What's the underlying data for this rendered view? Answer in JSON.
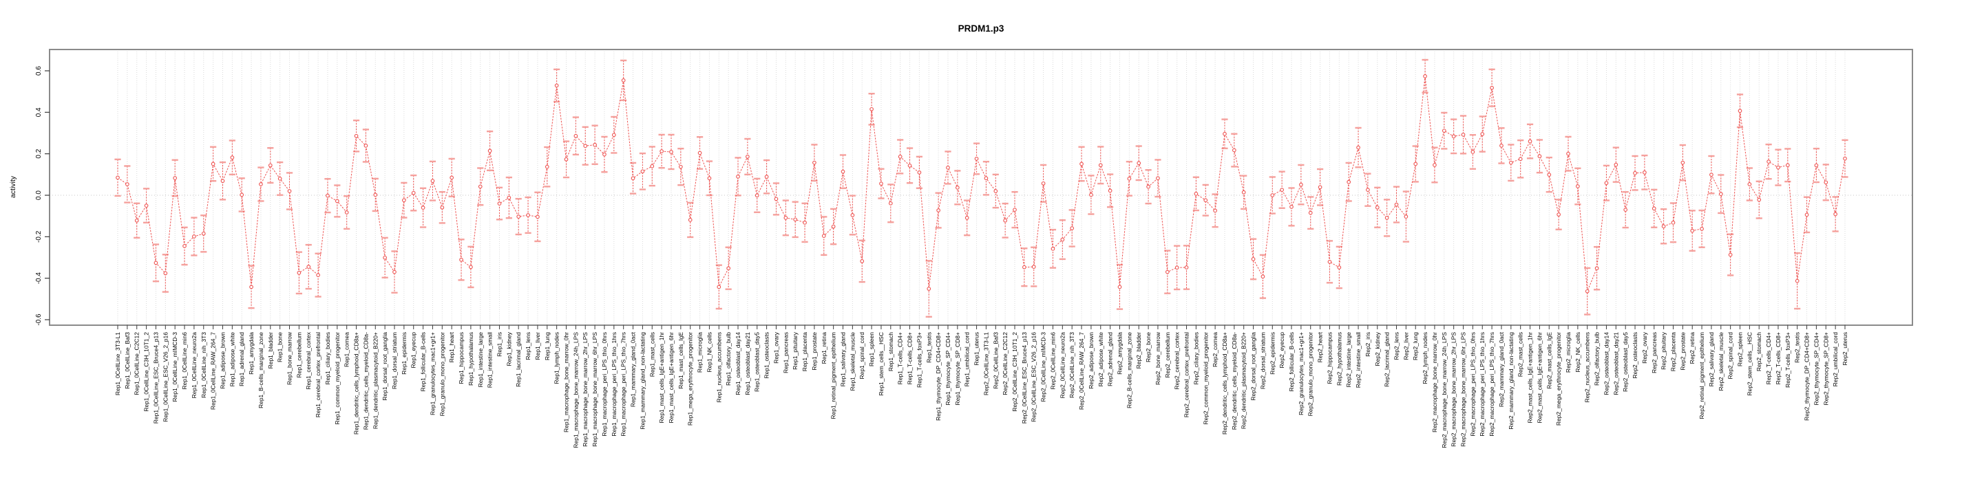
{
  "chart_data": {
    "type": "line",
    "title": "PRDM1.p3",
    "xlabel": "",
    "ylabel": "activity",
    "ylim": [
      -0.63,
      0.7
    ],
    "yticks": [
      -0.6,
      -0.4,
      -0.2,
      0.0,
      0.2,
      0.4,
      0.6
    ],
    "grid": "dotted vertical gridline at every category; dotted horizontal line at y=0",
    "legend": "none",
    "marker": "open-circle",
    "error_bars": "dashed vertical line with solid caps, +/- error per point",
    "colors": {
      "series": "#ee5250",
      "error_caps": "#f5a09c",
      "grid": "#d9d9d9",
      "zero_line": "#c4c4c4",
      "box": "#8a8a8a",
      "tick": "#3a3a3a",
      "text": "#000000",
      "background": "#ffffff"
    },
    "categories": [
      "Rep1_0CellLine_3T3-L1",
      "Rep1_0CellLine_Baf3",
      "Rep1_0CellLine_C2C12",
      "Rep1_0CellLine_C3H_10T1_2",
      "Rep1_0CellLine_ESC_Bruce4_p13",
      "Rep1_0CellLine_ESC_V26_2_p16",
      "Rep1_0CellLine_mIMCD-3",
      "Rep1_0CellLine_min6",
      "Rep1_0CellLine_neuro2a",
      "Rep1_0CellLine_nih_3T3",
      "Rep1_0CellLine_RAW_264_7",
      "Rep1_adipose_brown",
      "Rep1_adipose_white",
      "Rep1_adrenal_gland",
      "Rep1_amygdala",
      "Rep1_B-cells_marginal_zone",
      "Rep1_bladder",
      "Rep1_bone",
      "Rep1_bone_marrow",
      "Rep1_cerebellum",
      "Rep1_cerebral_cortex",
      "Rep1_cerebral_cortex_prefrontal",
      "Rep1_ciliary_bodies",
      "Rep1_common_myeloid_progenitor",
      "Rep1_cornea",
      "Rep1_dendritic_cells_lymphoid_CD8a+",
      "Rep1_dendritic_cells_myeloid_CD8a-",
      "Rep1_dendritic_plasmacytoid_B220+",
      "Rep1_dorsal_root_ganglia",
      "Rep1_dorsal_striatum",
      "Rep1_epidermis",
      "Rep1_eyecup",
      "Rep1_follicular_B-cells",
      "Rep1_granulocytes_mac1+gr1+",
      "Rep1_granulo_mono_progenitor",
      "Rep1_heart",
      "Rep1_hippocampus",
      "Rep1_hypothalamus",
      "Rep1_intestine_large",
      "Rep1_intestine_small",
      "Rep1_iris",
      "Rep1_kidney",
      "Rep1_lacrimal_gland",
      "Rep1_lens",
      "Rep1_liver",
      "Rep1_lung",
      "Rep1_lymph_nodes",
      "Rep1_macrophage_bone_marrow_0hr",
      "Rep1_macrophage_bone_marrow_24h_LPS",
      "Rep1_macrophage_bone_marrow_2hr_LPS",
      "Rep1_macrophage_bone_marrow_6hr_LPS",
      "Rep1_macrophage_peri_LPS_thio_0hrs",
      "Rep1_macrophage_peri_LPS_thio_1hrs",
      "Rep1_macrophage_peri_LPS_thio_7hrs",
      "Rep1_mammary_gland_0act",
      "Rep1_mammary_gland_non-lactating",
      "Rep1_mast_cells",
      "Rep1_mast_cells_IgE+antigen_1hr",
      "Rep1_mast_cells_IgE+antigen_6hr",
      "Rep1_mast_cells_IgE",
      "Rep1_mega_erythrocyte_progenitor",
      "Rep1_microglia",
      "Rep1_NK_cells",
      "Rep1_nucleus_accumbens",
      "Rep1_olfactory_bulb",
      "Rep1_osteoblast_day14",
      "Rep1_osteoblast_day21",
      "Rep1_osteoblast_day5",
      "Rep1_osteoclasts",
      "Rep1_ovary",
      "Rep1_pancreas",
      "Rep1_pituitary",
      "Rep1_placenta",
      "Rep1_prostate",
      "Rep1_retina",
      "Rep1_retinal_pigment_epithelium",
      "Rep1_salivary_gland",
      "Rep1_skeletal_muscle",
      "Rep1_spinal_cord",
      "Rep1_spleen",
      "Rep1_stem_cells__HSC",
      "Rep1_stomach",
      "Rep1_T-cells_CD4+",
      "Rep1_T-cells_CD8+",
      "Rep1_T-cells_foxP3+",
      "Rep1_testis",
      "Rep1_thymocyte_DP_CD4+CD8+",
      "Rep1_thymocyte_SP_CD4+",
      "Rep1_thymocyte_SP_CD8+",
      "Rep1_umbilical_cord",
      "Rep1_uterus",
      "Rep2_0CellLine_3T3-L1",
      "Rep2_0CellLine_Baf3",
      "Rep2_0CellLine_C2C12",
      "Rep2_0CellLine_C3H_10T1_2",
      "Rep2_0CellLine_ESC_Bruce4_p13",
      "Rep2_0CellLine_ESC_V26_2_p16",
      "Rep2_0CellLine_mIMCD-3",
      "Rep2_0CellLine_min6",
      "Rep2_0CellLine_neuro2a",
      "Rep2_0CellLine_nih_3T3",
      "Rep2_0CellLine_RAW_264_7",
      "Rep2_adipose_brown",
      "Rep2_adipose_white",
      "Rep2_adrenal_gland",
      "Rep2_amygdala",
      "Rep2_B-cells_marginal_zone",
      "Rep2_bladder",
      "Rep2_bone",
      "Rep2_bone_marrow",
      "Rep2_cerebellum",
      "Rep2_cerebral_cortex",
      "Rep2_cerebral_cortex_prefrontal",
      "Rep2_ciliary_bodies",
      "Rep2_common_myeloid_progenitor",
      "Rep2_cornea",
      "Rep2_dendritic_cells_lymphoid_CD8a+",
      "Rep2_dendritic_cells_myeloid_CD8a-",
      "Rep2_dendritic_plasmacytoid_B220+",
      "Rep2_dorsal_root_ganglia",
      "Rep2_dorsal_striatum",
      "Rep2_epidermis",
      "Rep2_eyecup",
      "Rep2_follicular_B-cells",
      "Rep2_granulocytes_mac1+gr1+",
      "Rep2_granulo_mono_progenitor",
      "Rep2_heart",
      "Rep2_hippocampus",
      "Rep2_hypothalamus",
      "Rep2_intestine_large",
      "Rep2_intestine_small",
      "Rep2_iris",
      "Rep2_kidney",
      "Rep2_lacrimal_gland",
      "Rep2_lens",
      "Rep2_liver",
      "Rep2_lung",
      "Rep2_lymph_nodes",
      "Rep2_macrophage_bone_marrow_0hr",
      "Rep2_macrophage_bone_marrow_24h_LPS",
      "Rep2_macrophage_bone_marrow_2hr_LPS",
      "Rep2_macrophage_bone_marrow_6hr_LPS",
      "Rep2_macrophage_peri_LPS_thio_0hrs",
      "Rep2_macrophage_peri_LPS_thio_1hrs",
      "Rep2_macrophage_peri_LPS_thio_7hrs",
      "Rep2_mammary_gland_0act",
      "Rep2_mammary_gland_non-lactating",
      "Rep2_mast_cells",
      "Rep2_mast_cells_IgE+antigen_1hr",
      "Rep2_mast_cells_IgE+antigen_6hr",
      "Rep2_mast_cells_IgE",
      "Rep2_mega_erythrocyte_progenitor",
      "Rep2_microglia",
      "Rep2_NK_cells",
      "Rep2_nucleus_accumbens",
      "Rep2_olfactory_bulb",
      "Rep2_osteoblast_day14",
      "Rep2_osteoblast_day21",
      "Rep2_osteoblast_day5",
      "Rep2_osteoclasts",
      "Rep2_ovary",
      "Rep2_pancreas",
      "Rep2_pituitary",
      "Rep2_placenta",
      "Rep2_prostate",
      "Rep2_retina",
      "Rep2_retinal_pigment_epithelium",
      "Rep2_salivary_gland",
      "Rep2_skeletal_muscle",
      "Rep2_spinal_cord",
      "Rep2_spleen",
      "Rep2_stem_cells__HSC",
      "Rep2_stomach",
      "Rep2_T-cells_CD4+",
      "Rep2_T-cells_CD8+",
      "Rep2_T-cells_foxP3+",
      "Rep2_testis",
      "Rep2_thymocyte_DP_CD4+CD8+",
      "Rep2_thymocyte_SP_CD4+",
      "Rep2_thymocyte_SP_CD8+",
      "Rep2_umbilical_cord",
      "Rep2_uterus"
    ],
    "values": [
      0.085,
      0.053,
      -0.122,
      -0.05,
      -0.326,
      -0.376,
      0.083,
      -0.245,
      -0.199,
      -0.185,
      0.151,
      0.069,
      0.182,
      0.002,
      -0.442,
      0.053,
      0.144,
      0.08,
      0.02,
      -0.374,
      -0.345,
      -0.385,
      -0.002,
      -0.028,
      -0.083,
      0.286,
      0.239,
      0.002,
      -0.301,
      -0.37,
      -0.024,
      0.011,
      -0.06,
      0.069,
      -0.059,
      0.085,
      -0.311,
      -0.346,
      0.042,
      0.214,
      -0.04,
      -0.012,
      -0.103,
      -0.096,
      -0.104,
      0.137,
      0.529,
      0.173,
      0.286,
      0.238,
      0.243,
      0.197,
      0.291,
      0.554,
      0.082,
      0.115,
      0.14,
      0.212,
      0.209,
      0.137,
      -0.119,
      0.204,
      0.082,
      -0.442,
      -0.352,
      0.09,
      0.186,
      -0.001,
      0.089,
      -0.018,
      -0.109,
      -0.117,
      -0.132,
      0.157,
      -0.196,
      -0.151,
      0.114,
      -0.096,
      -0.318,
      0.415,
      0.056,
      -0.039,
      0.186,
      0.143,
      0.11,
      -0.451,
      -0.073,
      0.133,
      0.037,
      -0.109,
      0.176,
      0.082,
      0.02,
      -0.122,
      -0.07,
      -0.347,
      -0.345,
      0.057,
      -0.258,
      -0.214,
      -0.159,
      0.151,
      0.002,
      0.145,
      0.022,
      -0.442,
      0.08,
      0.155,
      0.041,
      0.082,
      -0.37,
      -0.349,
      -0.348,
      0.007,
      -0.024,
      -0.074,
      0.296,
      0.217,
      0.014,
      -0.308,
      -0.392,
      0.0,
      0.026,
      -0.056,
      0.051,
      -0.085,
      0.039,
      -0.321,
      -0.348,
      0.064,
      0.23,
      0.026,
      -0.059,
      -0.109,
      -0.045,
      -0.103,
      0.151,
      0.574,
      0.146,
      0.311,
      0.284,
      0.292,
      0.209,
      0.295,
      0.518,
      0.239,
      0.157,
      0.175,
      0.26,
      0.188,
      0.099,
      -0.093,
      0.2,
      0.043,
      -0.463,
      -0.352,
      0.059,
      0.147,
      -0.07,
      0.107,
      0.11,
      -0.064,
      -0.15,
      -0.132,
      0.157,
      -0.171,
      -0.162,
      0.099,
      0.006,
      -0.287,
      0.407,
      0.053,
      -0.022,
      0.162,
      0.134,
      0.145,
      -0.413,
      -0.094,
      0.144,
      0.062,
      -0.091,
      0.177
    ],
    "errors": [
      0.088,
      0.088,
      0.083,
      0.082,
      0.089,
      0.09,
      0.087,
      0.09,
      0.091,
      0.088,
      0.082,
      0.09,
      0.082,
      0.08,
      0.102,
      0.081,
      0.084,
      0.079,
      0.088,
      0.1,
      0.106,
      0.104,
      0.081,
      0.076,
      0.079,
      0.075,
      0.078,
      0.078,
      0.096,
      0.1,
      0.084,
      0.085,
      0.094,
      0.094,
      0.075,
      0.091,
      0.098,
      0.098,
      0.089,
      0.094,
      0.077,
      0.098,
      0.086,
      0.086,
      0.118,
      0.095,
      0.078,
      0.087,
      0.09,
      0.091,
      0.093,
      0.085,
      0.087,
      0.096,
      0.074,
      0.087,
      0.094,
      0.08,
      0.083,
      0.088,
      0.083,
      0.077,
      0.082,
      0.105,
      0.101,
      0.091,
      0.086,
      0.081,
      0.08,
      0.076,
      0.084,
      0.085,
      0.093,
      0.087,
      0.092,
      0.085,
      0.08,
      0.094,
      0.1,
      0.075,
      0.071,
      0.091,
      0.081,
      0.084,
      0.076,
      0.135,
      0.084,
      0.078,
      0.081,
      0.084,
      0.074,
      0.08,
      0.08,
      0.082,
      0.086,
      0.091,
      0.094,
      0.089,
      0.092,
      0.094,
      0.088,
      0.082,
      0.093,
      0.089,
      0.079,
      0.107,
      0.082,
      0.082,
      0.081,
      0.089,
      0.103,
      0.105,
      0.105,
      0.08,
      0.074,
      0.079,
      0.07,
      0.079,
      0.08,
      0.097,
      0.104,
      0.088,
      0.088,
      0.091,
      0.095,
      0.077,
      0.087,
      0.101,
      0.1,
      0.092,
      0.095,
      0.078,
      0.096,
      0.088,
      0.086,
      0.121,
      0.086,
      0.079,
      0.084,
      0.087,
      0.082,
      0.091,
      0.082,
      0.085,
      0.089,
      0.085,
      0.087,
      0.09,
      0.082,
      0.079,
      0.083,
      0.072,
      0.082,
      0.087,
      0.112,
      0.103,
      0.084,
      0.083,
      0.086,
      0.082,
      0.082,
      0.091,
      0.083,
      0.094,
      0.085,
      0.097,
      0.089,
      0.09,
      0.092,
      0.099,
      0.079,
      0.078,
      0.089,
      0.083,
      0.086,
      0.079,
      0.134,
      0.085,
      0.081,
      0.086,
      0.083,
      0.089
    ]
  }
}
